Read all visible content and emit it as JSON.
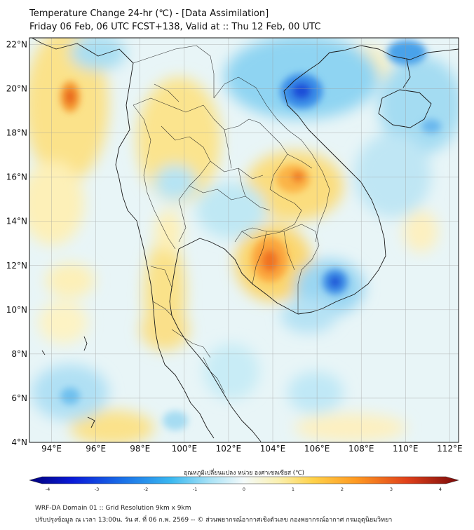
{
  "header": {
    "title": "Temperature Change 24-hr (℃) - [Data Assimilation]",
    "subtitle": "Friday 06 Feb, 06 UTC FCST+138, Valid at :: Thu 12 Feb, 00 UTC"
  },
  "map": {
    "lat_labels": [
      "4°N",
      "6°N",
      "8°N",
      "10°N",
      "12°N",
      "14°N",
      "16°N",
      "18°N",
      "20°N",
      "22°N"
    ],
    "lon_labels": [
      "94°E",
      "96°E",
      "98°E",
      "100°E",
      "102°E",
      "104°E",
      "106°E",
      "108°E",
      "110°E",
      "112°E"
    ],
    "lat_range": [
      4,
      22.3
    ],
    "lon_range": [
      93,
      112.4
    ],
    "colors": {
      "warm": "#ff9a2a",
      "hot": "#e8541e",
      "cool": "#5fc8f0",
      "cold": "#1a5fe0",
      "neutral": "#eaf6f8"
    }
  },
  "colorbar": {
    "title": "อุณหภูมิเปลี่ยนแปลง หน่วย องศาเซลเซียส (℃)",
    "ticks": [
      "-4",
      "-3",
      "-2",
      "-1",
      "0",
      "1",
      "2",
      "3",
      "4"
    ],
    "min": -4,
    "max": 4
  },
  "footer": {
    "line1": "WRF-DA Domain 01 :: Grid Resolution 9km x 9km",
    "line2": "ปรับปรุงข้อมูล ณ เวลา 13:00น. วัน ศ. ที่ 06 ก.พ. 2569 -- © ส่วนพยากรณ์อากาศเชิงตัวเลข กองพยากรณ์อากาศ กรมอุตุนิยมวิทยา"
  }
}
